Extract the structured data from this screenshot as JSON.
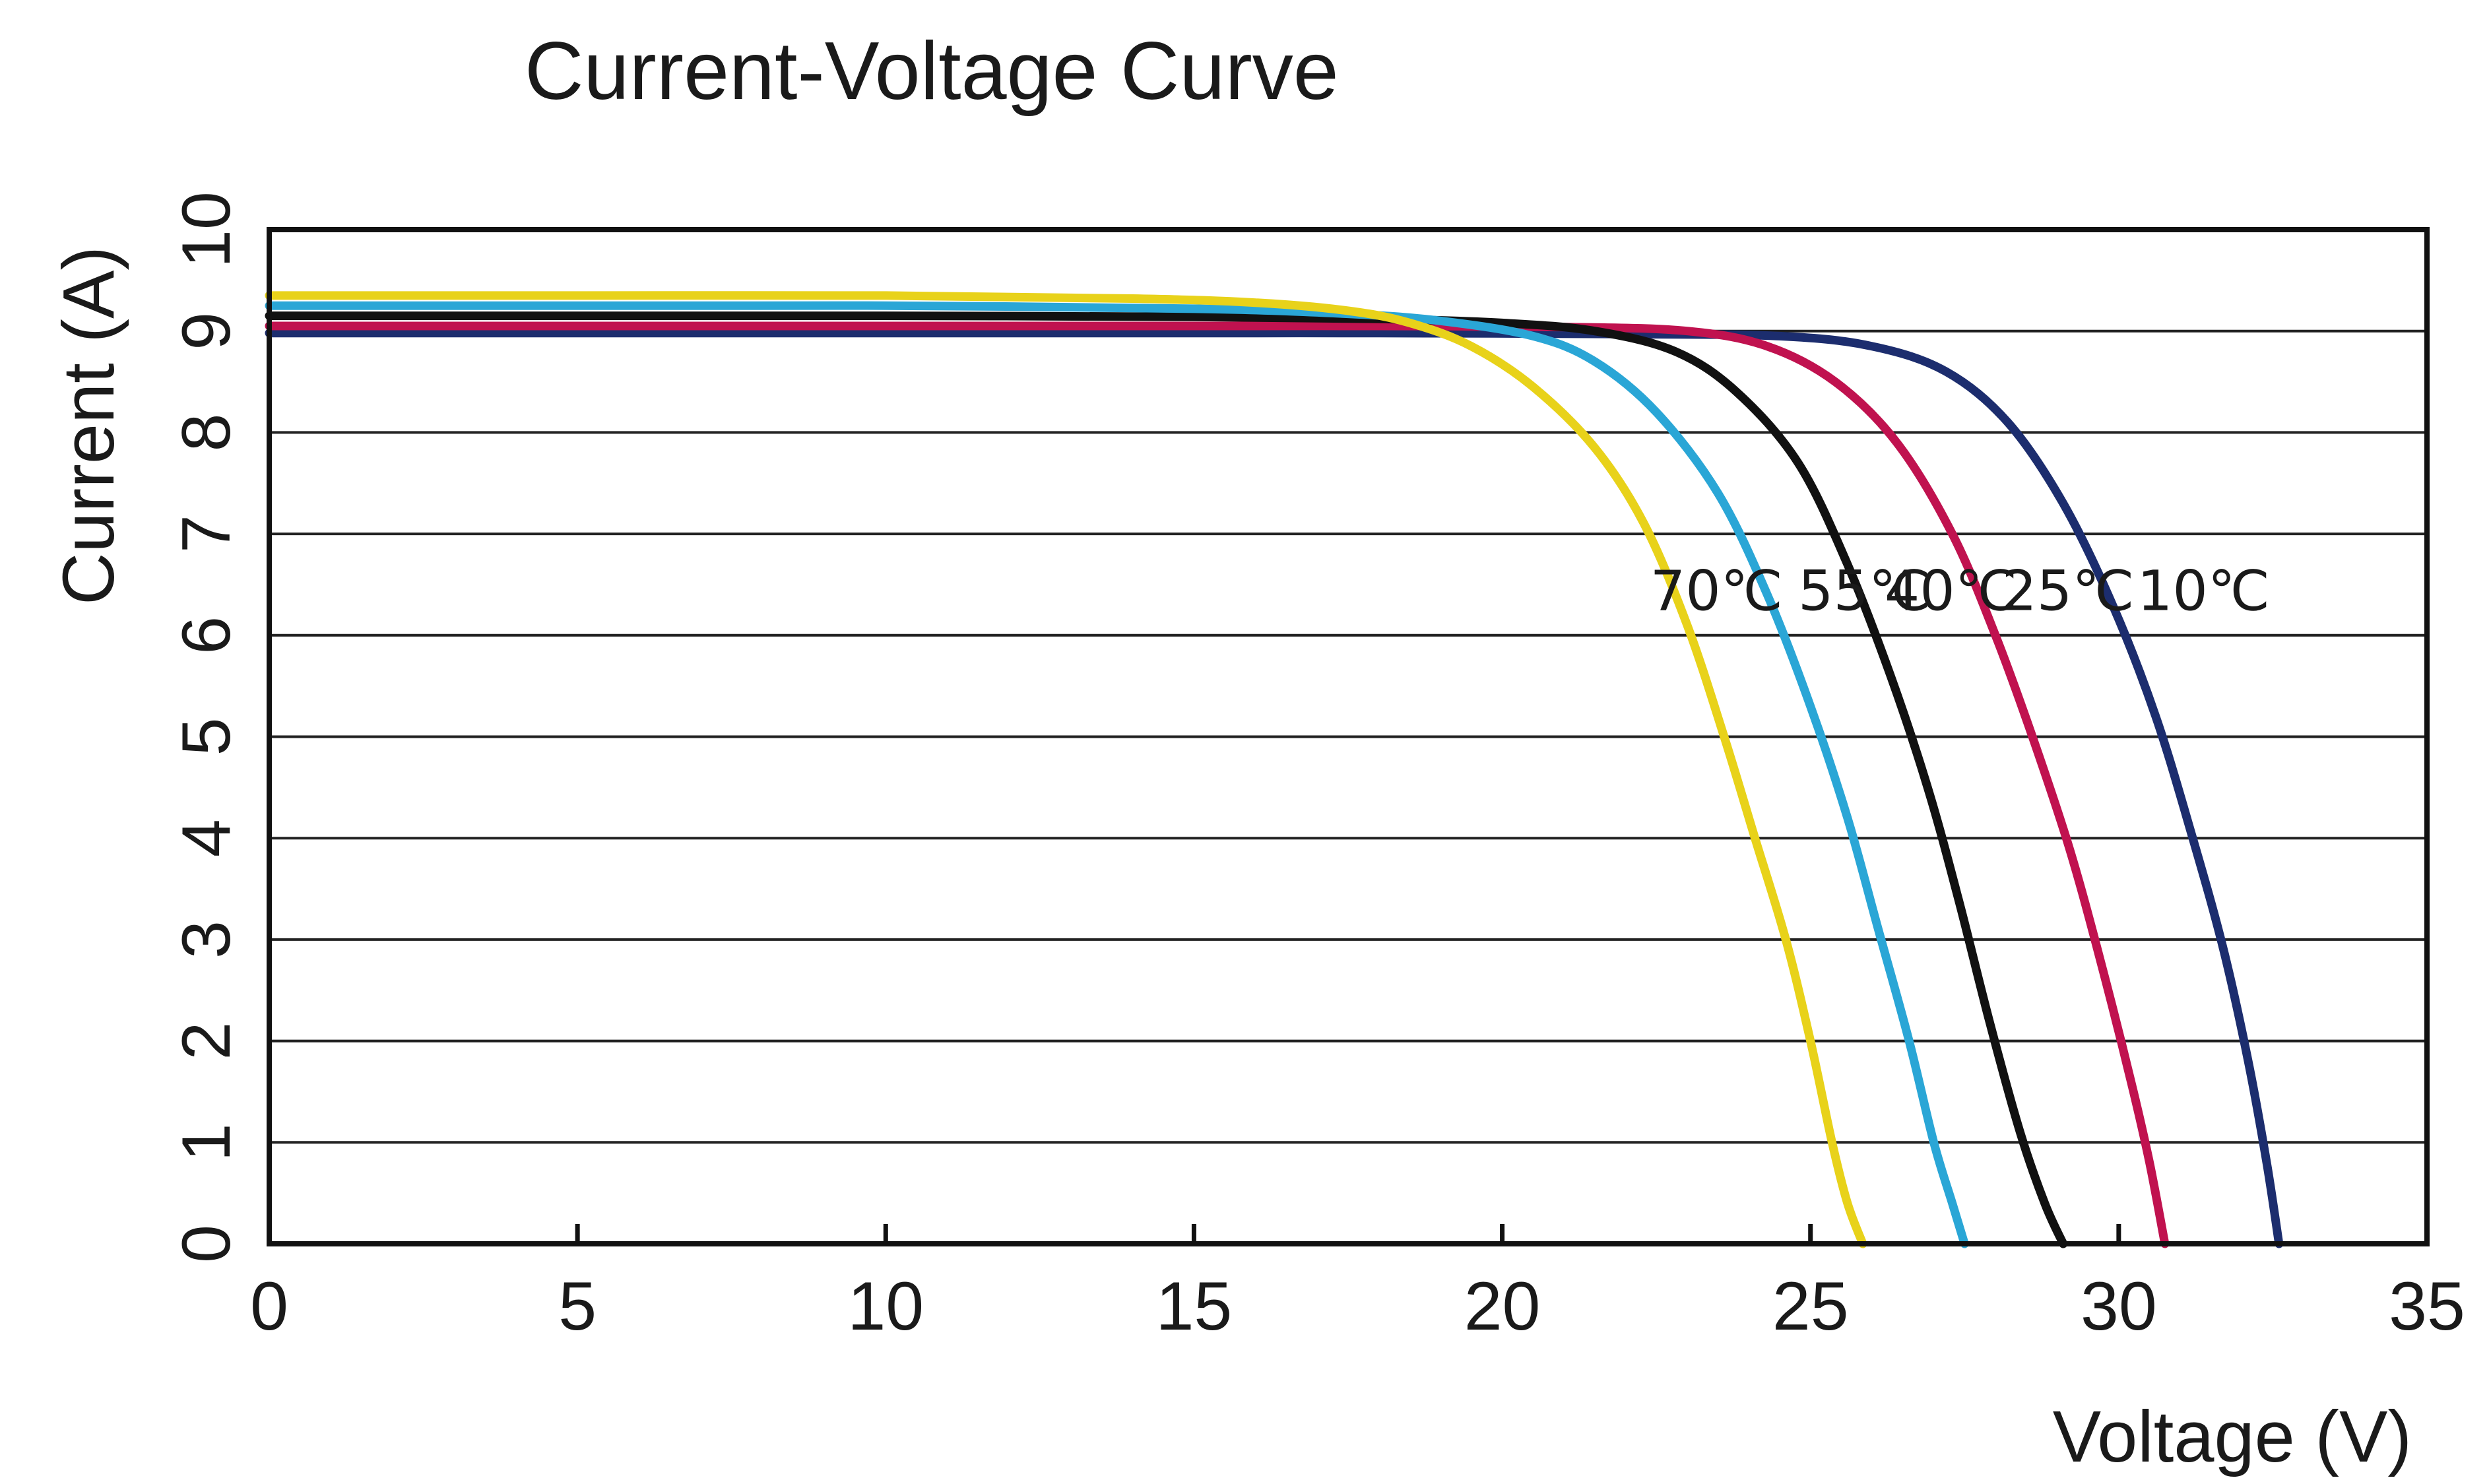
{
  "chart_data": {
    "type": "line",
    "title": "Current-Voltage Curve",
    "xlabel": "Voltage (V)",
    "ylabel": "Current (A)",
    "xlim": [
      0,
      35
    ],
    "ylim": [
      0,
      10
    ],
    "xticks": [
      0,
      5,
      10,
      15,
      20,
      25,
      30,
      35
    ],
    "yticks": [
      0,
      1,
      2,
      3,
      4,
      5,
      6,
      7,
      8,
      9,
      10
    ],
    "grid": "horizontal",
    "legend": "none",
    "series": [
      {
        "name": "70℃",
        "color": "#e8d21a",
        "points": [
          [
            0,
            9.35
          ],
          [
            5,
            9.35
          ],
          [
            10,
            9.35
          ],
          [
            14,
            9.32
          ],
          [
            16,
            9.28
          ],
          [
            17.5,
            9.2
          ],
          [
            18.5,
            9.08
          ],
          [
            19.5,
            8.85
          ],
          [
            20.5,
            8.45
          ],
          [
            21.5,
            7.85
          ],
          [
            22.3,
            7.1
          ],
          [
            23.0,
            6.1
          ],
          [
            23.6,
            5.0
          ],
          [
            24.1,
            4.0
          ],
          [
            24.6,
            3.0
          ],
          [
            25.0,
            2.0
          ],
          [
            25.35,
            1.0
          ],
          [
            25.6,
            0.4
          ],
          [
            25.85,
            0
          ]
        ]
      },
      {
        "name": "55℃",
        "color": "#2aa6d6",
        "points": [
          [
            0,
            9.25
          ],
          [
            5,
            9.25
          ],
          [
            10,
            9.25
          ],
          [
            15,
            9.22
          ],
          [
            17.5,
            9.17
          ],
          [
            19,
            9.1
          ],
          [
            20.5,
            8.95
          ],
          [
            21.5,
            8.7
          ],
          [
            22.5,
            8.2
          ],
          [
            23.5,
            7.4
          ],
          [
            24.3,
            6.4
          ],
          [
            25.0,
            5.3
          ],
          [
            25.6,
            4.2
          ],
          [
            26.1,
            3.1
          ],
          [
            26.6,
            2.0
          ],
          [
            27.0,
            1.0
          ],
          [
            27.3,
            0.4
          ],
          [
            27.5,
            0
          ]
        ]
      },
      {
        "name": "40℃",
        "color": "#111111",
        "points": [
          [
            0,
            9.15
          ],
          [
            5,
            9.15
          ],
          [
            10,
            9.15
          ],
          [
            15,
            9.14
          ],
          [
            18,
            9.12
          ],
          [
            20,
            9.08
          ],
          [
            21.5,
            9.0
          ],
          [
            22.8,
            8.8
          ],
          [
            23.8,
            8.4
          ],
          [
            24.8,
            7.7
          ],
          [
            25.6,
            6.7
          ],
          [
            26.3,
            5.6
          ],
          [
            26.9,
            4.5
          ],
          [
            27.4,
            3.4
          ],
          [
            27.9,
            2.2
          ],
          [
            28.4,
            1.1
          ],
          [
            28.8,
            0.4
          ],
          [
            29.1,
            0
          ]
        ]
      },
      {
        "name": "25℃",
        "color": "#c0124f",
        "points": [
          [
            0,
            9.05
          ],
          [
            5,
            9.05
          ],
          [
            10,
            9.05
          ],
          [
            15,
            9.05
          ],
          [
            18,
            9.05
          ],
          [
            21,
            9.04
          ],
          [
            23,
            9.0
          ],
          [
            24.3,
            8.85
          ],
          [
            25.4,
            8.5
          ],
          [
            26.4,
            7.9
          ],
          [
            27.3,
            7.0
          ],
          [
            28.0,
            6.0
          ],
          [
            28.6,
            5.0
          ],
          [
            29.2,
            3.9
          ],
          [
            29.7,
            2.8
          ],
          [
            30.2,
            1.6
          ],
          [
            30.5,
            0.8
          ],
          [
            30.75,
            0
          ]
        ]
      },
      {
        "name": "10℃",
        "color": "#1c2d6e",
        "points": [
          [
            0,
            8.98
          ],
          [
            5,
            8.98
          ],
          [
            10,
            8.98
          ],
          [
            15,
            8.98
          ],
          [
            18,
            8.98
          ],
          [
            22,
            8.97
          ],
          [
            24.5,
            8.95
          ],
          [
            26,
            8.85
          ],
          [
            27.2,
            8.6
          ],
          [
            28.2,
            8.1
          ],
          [
            29.1,
            7.3
          ],
          [
            29.9,
            6.3
          ],
          [
            30.6,
            5.2
          ],
          [
            31.2,
            4.0
          ],
          [
            31.7,
            2.9
          ],
          [
            32.1,
            1.8
          ],
          [
            32.4,
            0.8
          ],
          [
            32.6,
            0
          ]
        ]
      }
    ],
    "annotations": [
      {
        "text": "70℃",
        "x": 22.4,
        "y": 6.25
      },
      {
        "text": "55℃",
        "x": 24.8,
        "y": 6.25
      },
      {
        "text": "40℃",
        "x": 26.2,
        "y": 6.25
      },
      {
        "text": "25℃",
        "x": 28.1,
        "y": 6.25
      },
      {
        "text": "10℃",
        "x": 30.3,
        "y": 6.25
      }
    ]
  }
}
